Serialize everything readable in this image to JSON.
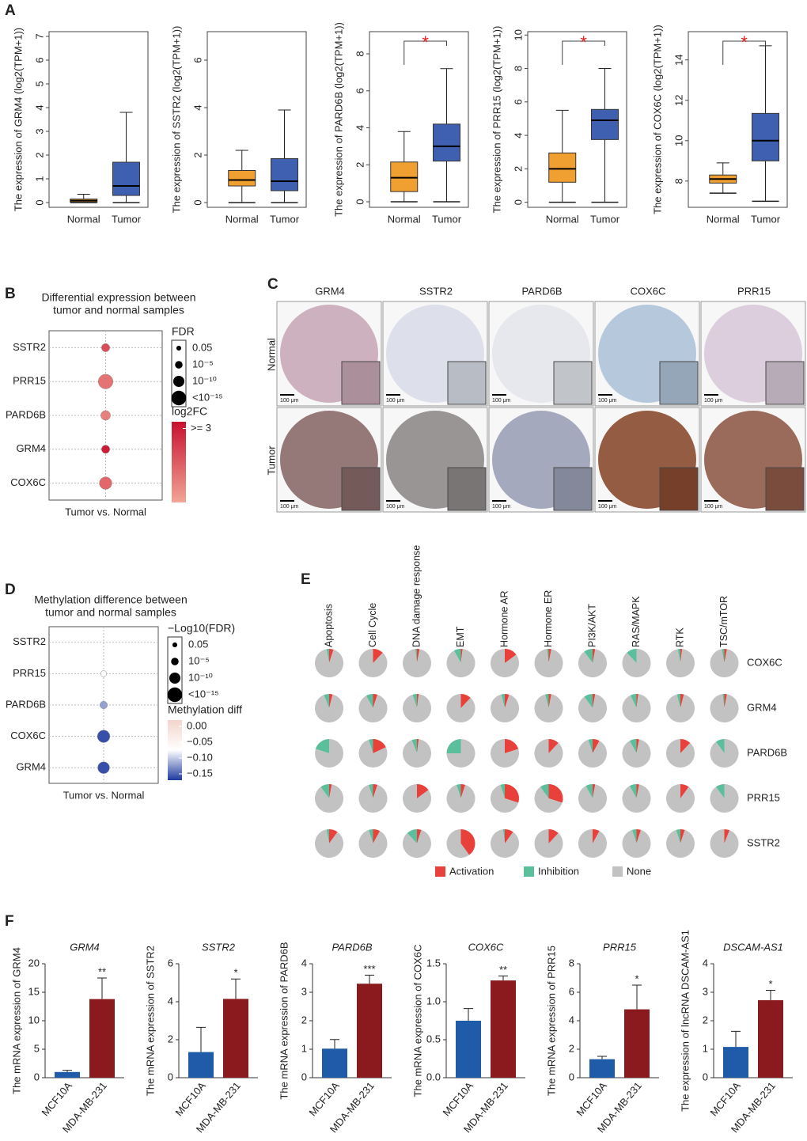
{
  "panel_labels": [
    "A",
    "B",
    "C",
    "D",
    "E",
    "F"
  ],
  "tissue_images": {
    "columns": [
      "GRM4",
      "SSTR2",
      "PARD6B",
      "COX6C",
      "PRR15"
    ],
    "rows": [
      "Normal",
      "Tumor"
    ],
    "scale_bar": "100 μm"
  },
  "chart_data": [
    {
      "type": "box",
      "y_label": "The expression of GRM4 (log2(TPM+1))",
      "categories": [
        "Normal",
        "Tumor"
      ],
      "boxes": [
        {
          "color": "#f0a030",
          "low": 0,
          "q1": 0.02,
          "median": 0.08,
          "q3": 0.15,
          "high": 0.35
        },
        {
          "color": "#3f60b0",
          "low": 0,
          "q1": 0.3,
          "median": 0.7,
          "q3": 1.7,
          "high": 3.8
        }
      ],
      "ylim": [
        -0.2,
        7.2
      ],
      "yticks": [
        0,
        1,
        2,
        3,
        4,
        5,
        6,
        7
      ]
    },
    {
      "type": "box",
      "y_label": "The expression of SSTR2 (log2(TPM+1))",
      "categories": [
        "Normal",
        "Tumor"
      ],
      "boxes": [
        {
          "color": "#f0a030",
          "low": 0,
          "q1": 0.7,
          "median": 0.95,
          "q3": 1.35,
          "high": 2.2
        },
        {
          "color": "#3f60b0",
          "low": 0,
          "q1": 0.5,
          "median": 0.9,
          "q3": 1.85,
          "high": 3.9
        }
      ],
      "ylim": [
        -0.2,
        7.2
      ],
      "yticks": [
        0,
        2,
        4,
        6
      ]
    },
    {
      "type": "box",
      "y_label": "The expression of PARD6B (log2(TPM+1))",
      "categories": [
        "Normal",
        "Tumor"
      ],
      "boxes": [
        {
          "color": "#f0a030",
          "low": 0,
          "q1": 0.55,
          "median": 1.3,
          "q3": 2.15,
          "high": 3.8
        },
        {
          "color": "#3f60b0",
          "low": 0,
          "q1": 2.2,
          "median": 3.0,
          "q3": 4.2,
          "high": 7.2
        }
      ],
      "ylim": [
        -0.3,
        9.2
      ],
      "yticks": [
        0,
        2,
        4,
        6,
        8
      ],
      "annotation": "*"
    },
    {
      "type": "box",
      "y_label": "The expression of PRR15 (log2(TPM+1))",
      "categories": [
        "Normal",
        "Tumor"
      ],
      "boxes": [
        {
          "color": "#f0a030",
          "low": 0,
          "q1": 1.2,
          "median": 2.0,
          "q3": 2.95,
          "high": 5.5
        },
        {
          "color": "#3f60b0",
          "low": 0,
          "q1": 3.75,
          "median": 4.9,
          "q3": 5.55,
          "high": 8.0
        }
      ],
      "ylim": [
        -0.3,
        10.2
      ],
      "yticks": [
        0,
        2,
        4,
        6,
        8,
        10
      ],
      "annotation": "*"
    },
    {
      "type": "box",
      "y_label": "The expression of COX6C (log2(TPM+1))",
      "categories": [
        "Normal",
        "Tumor"
      ],
      "boxes": [
        {
          "color": "#f0a030",
          "low": 7.4,
          "q1": 7.9,
          "median": 8.1,
          "q3": 8.3,
          "high": 8.9
        },
        {
          "color": "#3f60b0",
          "low": 7.0,
          "q1": 9.0,
          "median": 10.0,
          "q3": 11.35,
          "high": 14.7
        }
      ],
      "ylim": [
        6.7,
        15.4
      ],
      "yticks": [
        8,
        10,
        12,
        14
      ],
      "annotation": "*"
    },
    {
      "type": "dot",
      "title": [
        "Differential expression between",
        "tumor and normal samples"
      ],
      "categories": [
        "SSTR2",
        "PRR15",
        "PARD6B",
        "GRM4",
        "COX6C"
      ],
      "x_label": "Tumor vs. Normal",
      "values": [
        2.2,
        1.6,
        1.4,
        3.0,
        1.8
      ],
      "fdr": [
        1e-06,
        1e-15,
        1e-08,
        1e-06,
        1e-12
      ],
      "size_legend": {
        "title": "FDR",
        "entries": [
          0.05,
          {
            "value": 1e-05,
            "label": "10⁻⁵"
          },
          {
            "value": 1e-10,
            "label": "10⁻¹⁰"
          },
          {
            "value": 1e-15,
            "label": "<10⁻¹⁵"
          }
        ]
      },
      "colorbar": {
        "title": "log2FC",
        "lim": [
          0.8,
          3.2
        ],
        "ticks": [
          {
            "value": 3,
            "label": ">= 3"
          }
        ],
        "colors": [
          "#f2a597",
          "#c8102e"
        ]
      }
    },
    {
      "type": "dot",
      "title": [
        "Methylation difference between",
        "tumor and normal samples"
      ],
      "categories": [
        "SSTR2",
        "PRR15",
        "PARD6B",
        "COX6C",
        "GRM4"
      ],
      "x_label": "Tumor vs. Normal",
      "values": [
        null,
        -0.07,
        -0.12,
        -0.16,
        -0.16
      ],
      "fdr": [
        null,
        0.001,
        1e-05,
        1e-12,
        1e-11
      ],
      "size_legend": {
        "title": "−Log10(FDR)",
        "entries": [
          0.05,
          {
            "value": 1e-05,
            "label": "10⁻⁵"
          },
          {
            "value": 1e-10,
            "label": "10⁻¹⁰"
          },
          {
            "value": 1e-15,
            "label": "<10⁻¹⁵"
          }
        ]
      },
      "colorbar": {
        "title": "Methylation diff",
        "lim": [
          -0.17,
          0.02
        ],
        "ticks": [
          {
            "value": 0,
            "label": "0.00"
          },
          {
            "value": -0.05,
            "label": "−0.05"
          },
          {
            "value": -0.1,
            "label": "−0.10"
          },
          {
            "value": -0.15,
            "label": "−0.15"
          }
        ],
        "colors": [
          "#1f3a9e",
          "#ffffff",
          "#f3d5cc"
        ]
      }
    },
    {
      "type": "pie",
      "columns": [
        "Apoptosis",
        "Cell Cycle",
        "DNA damage response",
        "EMT",
        "Hormone AR",
        "Hormone ER",
        "PI3K/AKT",
        "RAS/MAPK",
        "RTK",
        "TSC/mTOR"
      ],
      "rows": [
        "COX6C",
        "GRM4",
        "PARD6B",
        "PRR15",
        "SSTR2"
      ],
      "series": [
        {
          "name": "Activation",
          "color": "#e8413c",
          "values": [
            [
              5,
              12,
              3,
              2,
              15,
              3,
              3,
              0,
              2,
              3
            ],
            [
              4,
              5,
              2,
              12,
              5,
              3,
              3,
              2,
              4,
              3
            ],
            [
              0,
              18,
              2,
              0,
              20,
              12,
              8,
              3,
              12,
              0
            ],
            [
              3,
              5,
              15,
              5,
              30,
              30,
              3,
              3,
              10,
              0
            ],
            [
              10,
              8,
              5,
              40,
              10,
              12,
              8,
              5,
              5,
              6
            ]
          ]
        },
        {
          "name": "Inhibition",
          "color": "#5cbf9b",
          "values": [
            [
              3,
              0,
              2,
              8,
              0,
              2,
              10,
              12,
              3,
              3
            ],
            [
              6,
              8,
              5,
              0,
              4,
              4,
              10,
              7,
              4,
              2
            ],
            [
              20,
              5,
              6,
              25,
              0,
              0,
              5,
              8,
              0,
              10
            ],
            [
              10,
              5,
              0,
              5,
              5,
              10,
              8,
              8,
              0,
              10
            ],
            [
              3,
              5,
              12,
              0,
              2,
              0,
              0,
              5,
              5,
              0
            ]
          ]
        },
        {
          "name": "None",
          "color": "#c2c2c2",
          "values": [
            [
              92,
              88,
              95,
              90,
              85,
              95,
              87,
              88,
              95,
              94
            ],
            [
              90,
              87,
              93,
              88,
              91,
              93,
              87,
              91,
              92,
              95
            ],
            [
              80,
              77,
              92,
              75,
              80,
              88,
              87,
              89,
              88,
              90
            ],
            [
              87,
              90,
              85,
              90,
              65,
              60,
              89,
              89,
              90,
              90
            ],
            [
              87,
              87,
              83,
              60,
              88,
              88,
              92,
              90,
              90,
              94
            ]
          ]
        }
      ]
    },
    {
      "type": "bar",
      "title": "GRM4",
      "y_label": "The mRNA expression of GRM4",
      "categories": [
        "MCF10A",
        "MDA-MB-231"
      ],
      "values": [
        1.0,
        13.8
      ],
      "errors": [
        0.3,
        3.7
      ],
      "colors": [
        "#1f5ba8",
        "#8b1a1e"
      ],
      "significance": "**",
      "ylim": [
        0,
        20
      ],
      "yticks": [
        0,
        5,
        10,
        15,
        20
      ]
    },
    {
      "type": "bar",
      "title": "SSTR2",
      "y_label": "The mRNA expression of SSTR2",
      "categories": [
        "MCF10A",
        "MDA-MB-231"
      ],
      "values": [
        1.35,
        4.15
      ],
      "errors": [
        1.3,
        1.05
      ],
      "colors": [
        "#1f5ba8",
        "#8b1a1e"
      ],
      "significance": "*",
      "ylim": [
        0,
        6
      ],
      "yticks": [
        0,
        2,
        4,
        6
      ]
    },
    {
      "type": "bar",
      "title": "PARD6B",
      "y_label": "The mRNA expression of PARD6B",
      "categories": [
        "MCF10A",
        "MDA-MB-231"
      ],
      "values": [
        1.02,
        3.3
      ],
      "errors": [
        0.32,
        0.3
      ],
      "colors": [
        "#1f5ba8",
        "#8b1a1e"
      ],
      "significance": "***",
      "ylim": [
        0,
        4
      ],
      "yticks": [
        0,
        1,
        2,
        3,
        4
      ]
    },
    {
      "type": "bar",
      "title": "COX6C",
      "y_label": "The mRNA expression of COX6C",
      "categories": [
        "MCF10A",
        "MDA-MB-231"
      ],
      "values": [
        0.75,
        1.28
      ],
      "errors": [
        0.16,
        0.06
      ],
      "colors": [
        "#1f5ba8",
        "#8b1a1e"
      ],
      "significance": "**",
      "ylim": [
        0,
        1.5
      ],
      "yticks": [
        {
          "value": 0,
          "label": "0.0"
        },
        0.5,
        {
          "value": 1,
          "label": "1.0"
        },
        1.5
      ]
    },
    {
      "type": "bar",
      "title": "PRR15",
      "y_label": "The mRNA expression of PRR15",
      "categories": [
        "MCF10A",
        "MDA-MB-231"
      ],
      "values": [
        1.3,
        4.8
      ],
      "errors": [
        0.2,
        1.7
      ],
      "colors": [
        "#1f5ba8",
        "#8b1a1e"
      ],
      "significance": "*",
      "ylim": [
        0,
        8
      ],
      "yticks": [
        0,
        2,
        4,
        6,
        8
      ]
    },
    {
      "type": "bar",
      "title": "DSCAM-AS1",
      "y_label": "The expression of lncRNA DSCAM-AS1",
      "categories": [
        "MCF10A",
        "MDA-MB-231"
      ],
      "values": [
        1.08,
        2.72
      ],
      "errors": [
        0.55,
        0.35
      ],
      "colors": [
        "#1f5ba8",
        "#8b1a1e"
      ],
      "significance": "*",
      "ylim": [
        0,
        4
      ],
      "yticks": [
        0,
        1,
        2,
        3,
        4
      ]
    }
  ]
}
